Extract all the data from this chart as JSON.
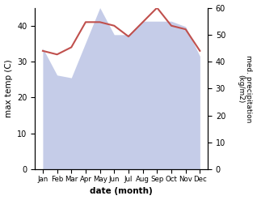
{
  "months": [
    "Jan",
    "Feb",
    "Mar",
    "Apr",
    "May",
    "Jun",
    "Jul",
    "Aug",
    "Sep",
    "Oct",
    "Nov",
    "Dec"
  ],
  "temperature": [
    33,
    32,
    34,
    41,
    41,
    40,
    37,
    41,
    45,
    40,
    39,
    33
  ],
  "precipitation": [
    45,
    35,
    34,
    47,
    60,
    50,
    50,
    55,
    55,
    55,
    53,
    42
  ],
  "temp_color": "#c0504d",
  "precip_fill_color": "#c5cce8",
  "xlabel": "date (month)",
  "ylabel_left": "max temp (C)",
  "ylabel_right": "med. precipitation\n(kg/m2)",
  "ylim_left": [
    0,
    45
  ],
  "ylim_right": [
    0,
    60
  ],
  "yticks_left": [
    0,
    10,
    20,
    30,
    40
  ],
  "yticks_right": [
    0,
    10,
    20,
    30,
    40,
    50,
    60
  ],
  "bg_color": "#ffffff",
  "figwidth": 3.18,
  "figheight": 2.47,
  "dpi": 100
}
